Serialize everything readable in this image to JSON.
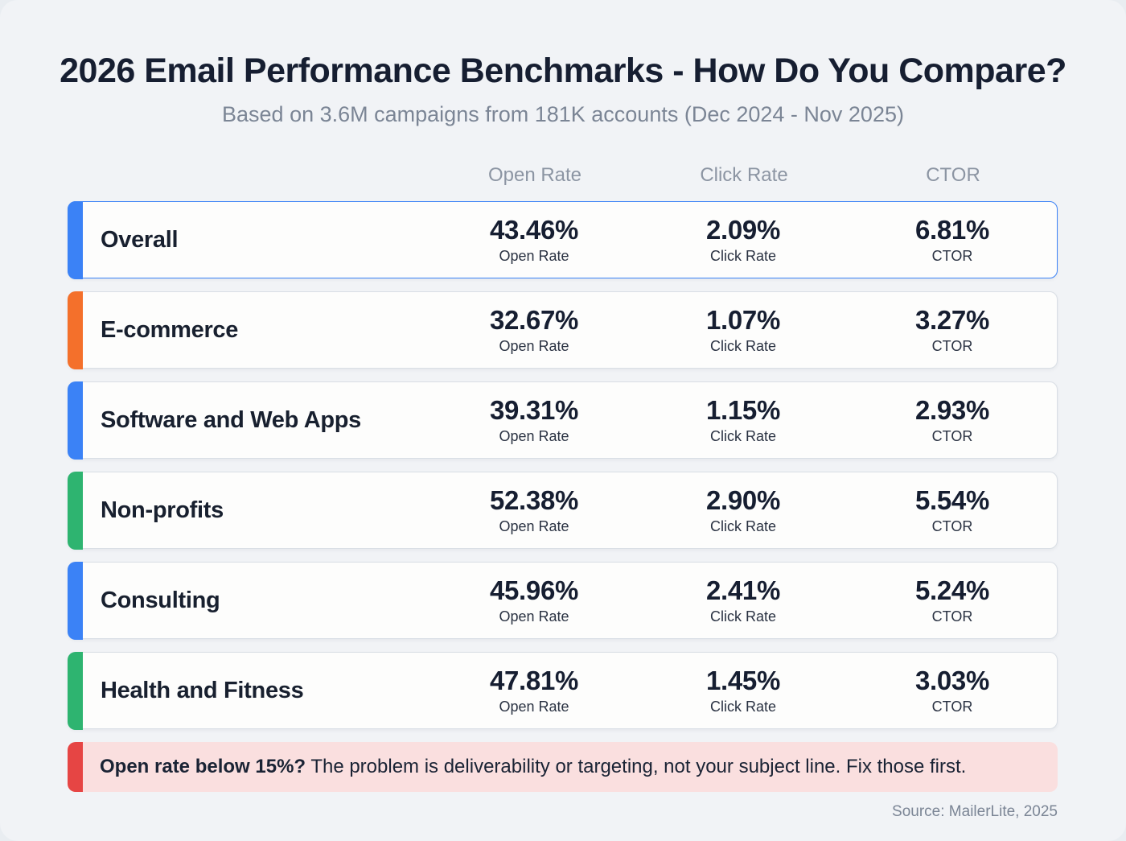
{
  "header": {
    "title": "2026 Email Performance Benchmarks - How Do You Compare?",
    "subtitle": "Based on 3.6M campaigns from 181K accounts (Dec 2024 - Nov 2025)"
  },
  "columns": [
    {
      "label": "Open Rate"
    },
    {
      "label": "Click Rate"
    },
    {
      "label": "CTOR"
    }
  ],
  "rows": [
    {
      "category": "Overall",
      "accent_color": "#3b82f6",
      "highlighted": true,
      "values": [
        "43.46%",
        "2.09%",
        "6.81%"
      ]
    },
    {
      "category": "E-commerce",
      "accent_color": "#f4702b",
      "highlighted": false,
      "values": [
        "32.67%",
        "1.07%",
        "3.27%"
      ]
    },
    {
      "category": "Software and Web Apps",
      "accent_color": "#3b82f6",
      "highlighted": false,
      "values": [
        "39.31%",
        "1.15%",
        "2.93%"
      ]
    },
    {
      "category": "Non-profits",
      "accent_color": "#2eb470",
      "highlighted": false,
      "values": [
        "52.38%",
        "2.90%",
        "5.54%"
      ]
    },
    {
      "category": "Consulting",
      "accent_color": "#3b82f6",
      "highlighted": false,
      "values": [
        "45.96%",
        "2.41%",
        "5.24%"
      ]
    },
    {
      "category": "Health and Fitness",
      "accent_color": "#2eb470",
      "highlighted": false,
      "values": [
        "47.81%",
        "1.45%",
        "3.03%"
      ]
    }
  ],
  "callout": {
    "bold_text": "Open rate below 15%?",
    "text": " The problem is deliverability or targeting, not your subject line. Fix those first.",
    "accent_color": "#e64544",
    "background_color": "#fadfdf"
  },
  "footer": {
    "source": "Source: MailerLite, 2025"
  },
  "chart_data": {
    "type": "table",
    "title": "2026 Email Performance Benchmarks - How Do You Compare?",
    "subtitle": "Based on 3.6M campaigns from 181K accounts (Dec 2024 - Nov 2025)",
    "columns": [
      "Open Rate",
      "Click Rate",
      "CTOR"
    ],
    "categories": [
      "Overall",
      "E-commerce",
      "Software and Web Apps",
      "Non-profits",
      "Consulting",
      "Health and Fitness"
    ],
    "series": [
      {
        "name": "Open Rate",
        "values": [
          43.46,
          32.67,
          39.31,
          52.38,
          45.96,
          47.81
        ]
      },
      {
        "name": "Click Rate",
        "values": [
          2.09,
          1.07,
          1.15,
          2.9,
          2.41,
          1.45
        ]
      },
      {
        "name": "CTOR",
        "values": [
          6.81,
          3.27,
          2.93,
          5.54,
          5.24,
          3.03
        ]
      }
    ],
    "annotation": "Open rate below 15%? The problem is deliverability or targeting, not your subject line. Fix those first.",
    "source": "Source: MailerLite, 2025"
  }
}
